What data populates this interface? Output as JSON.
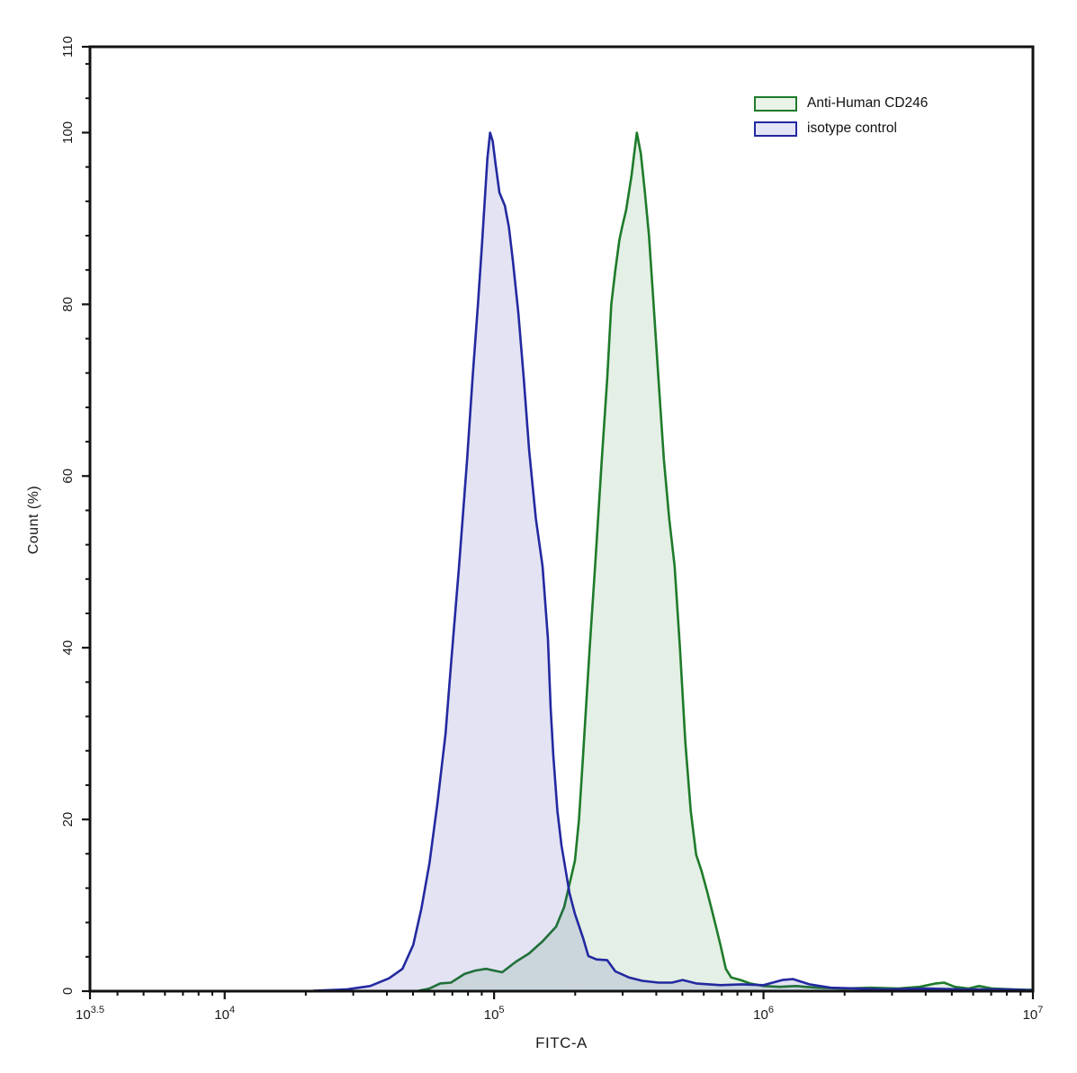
{
  "figure": {
    "xlabel": "FITC-A",
    "ylabel": "Count (%)"
  },
  "legend": {
    "items": [
      {
        "label": "Anti-Human CD246",
        "line_color": "#1e7b2a",
        "fill_color": "#e9f3e8"
      },
      {
        "label": "isotype control",
        "line_color": "#2329a0",
        "fill_color": "#e4e5f6"
      }
    ]
  },
  "chart_data": {
    "type": "area",
    "title": "",
    "xlabel": "FITC-A",
    "ylabel": "Count (%)",
    "x_scale": "log10",
    "xlim_log10": [
      3.5,
      7
    ],
    "ylim": [
      0,
      110
    ],
    "grid": false,
    "legend_position": "top-right-inside",
    "x_major_ticks_log10": [
      3.5,
      4,
      5,
      6,
      7
    ],
    "x_major_tick_labels": [
      "10^3.5",
      "10^4",
      "10^5",
      "10^6",
      "10^7"
    ],
    "y_major_ticks": [
      0,
      20,
      40,
      60,
      80,
      100,
      110
    ],
    "y_minor_step": 4,
    "axis_color": "#111111",
    "series": [
      {
        "name": "Anti-Human CD246",
        "line_color": "#1e7b2a",
        "fill_opacity": 0.12,
        "peak": {
          "x_approx": 340000,
          "y_pct": 100
        },
        "points_log10x_pct": [
          [
            4.72,
            0.05
          ],
          [
            4.76,
            0.3
          ],
          [
            4.8,
            0.9
          ],
          [
            4.84,
            1.0
          ],
          [
            4.89,
            2.0
          ],
          [
            4.93,
            2.4
          ],
          [
            4.97,
            2.6
          ],
          [
            5.0,
            2.4
          ],
          [
            5.03,
            2.2
          ],
          [
            5.08,
            3.4
          ],
          [
            5.13,
            4.4
          ],
          [
            5.18,
            5.8
          ],
          [
            5.23,
            7.5
          ],
          [
            5.26,
            9.8
          ],
          [
            5.28,
            12.5
          ],
          [
            5.3,
            15.2
          ],
          [
            5.315,
            20
          ],
          [
            5.33,
            27.4
          ],
          [
            5.355,
            40
          ],
          [
            5.375,
            49.5
          ],
          [
            5.4,
            62
          ],
          [
            5.42,
            71.4
          ],
          [
            5.435,
            80
          ],
          [
            5.45,
            84
          ],
          [
            5.465,
            87.5
          ],
          [
            5.475,
            89
          ],
          [
            5.49,
            91
          ],
          [
            5.51,
            95
          ],
          [
            5.52,
            97.5
          ],
          [
            5.53,
            100
          ],
          [
            5.545,
            97.5
          ],
          [
            5.56,
            93
          ],
          [
            5.575,
            88
          ],
          [
            5.59,
            81
          ],
          [
            5.61,
            71.4
          ],
          [
            5.63,
            62
          ],
          [
            5.65,
            55
          ],
          [
            5.67,
            49.5
          ],
          [
            5.69,
            40
          ],
          [
            5.71,
            29
          ],
          [
            5.73,
            21
          ],
          [
            5.75,
            15.9
          ],
          [
            5.77,
            14
          ],
          [
            5.79,
            11.7
          ],
          [
            5.815,
            8.6
          ],
          [
            5.84,
            5.4
          ],
          [
            5.86,
            2.6
          ],
          [
            5.88,
            1.6
          ],
          [
            5.915,
            1.3
          ],
          [
            5.95,
            0.9
          ],
          [
            6.0,
            0.6
          ],
          [
            6.06,
            0.5
          ],
          [
            6.12,
            0.6
          ],
          [
            6.2,
            0.4
          ],
          [
            6.3,
            0.3
          ],
          [
            6.4,
            0.4
          ],
          [
            6.5,
            0.3
          ],
          [
            6.58,
            0.5
          ],
          [
            6.64,
            0.9
          ],
          [
            6.67,
            1.0
          ],
          [
            6.71,
            0.5
          ],
          [
            6.76,
            0.3
          ],
          [
            6.8,
            0.6
          ],
          [
            6.85,
            0.3
          ],
          [
            6.93,
            0.2
          ],
          [
            7.0,
            0.15
          ]
        ]
      },
      {
        "name": "isotype control",
        "line_color": "#2329a0",
        "fill_opacity": 0.13,
        "peak": {
          "x_approx": 97000,
          "y_pct": 100
        },
        "points_log10x_pct": [
          [
            4.33,
            0.05
          ],
          [
            4.45,
            0.2
          ],
          [
            4.54,
            0.6
          ],
          [
            4.61,
            1.5
          ],
          [
            4.66,
            2.6
          ],
          [
            4.7,
            5.4
          ],
          [
            4.73,
            9.6
          ],
          [
            4.76,
            14.9
          ],
          [
            4.79,
            22
          ],
          [
            4.82,
            30
          ],
          [
            4.84,
            38
          ],
          [
            4.87,
            49.5
          ],
          [
            4.9,
            62
          ],
          [
            4.92,
            71.4
          ],
          [
            4.94,
            80
          ],
          [
            4.955,
            87
          ],
          [
            4.965,
            92
          ],
          [
            4.975,
            97
          ],
          [
            4.985,
            100
          ],
          [
            4.995,
            99
          ],
          [
            5.005,
            96.5
          ],
          [
            5.02,
            93
          ],
          [
            5.04,
            91.5
          ],
          [
            5.055,
            89
          ],
          [
            5.07,
            85
          ],
          [
            5.09,
            79
          ],
          [
            5.11,
            71.4
          ],
          [
            5.13,
            63
          ],
          [
            5.155,
            55
          ],
          [
            5.18,
            49.5
          ],
          [
            5.2,
            41
          ],
          [
            5.21,
            33
          ],
          [
            5.22,
            27.4
          ],
          [
            5.235,
            21
          ],
          [
            5.25,
            17
          ],
          [
            5.28,
            11.4
          ],
          [
            5.3,
            9
          ],
          [
            5.33,
            6.2
          ],
          [
            5.35,
            4.1
          ],
          [
            5.38,
            3.7
          ],
          [
            5.42,
            3.6
          ],
          [
            5.45,
            2.3
          ],
          [
            5.5,
            1.6
          ],
          [
            5.55,
            1.2
          ],
          [
            5.61,
            1.0
          ],
          [
            5.66,
            1.0
          ],
          [
            5.7,
            1.3
          ],
          [
            5.75,
            0.9
          ],
          [
            5.84,
            0.7
          ],
          [
            5.92,
            0.8
          ],
          [
            6.0,
            0.7
          ],
          [
            6.07,
            1.3
          ],
          [
            6.11,
            1.4
          ],
          [
            6.17,
            0.8
          ],
          [
            6.25,
            0.4
          ],
          [
            6.35,
            0.3
          ],
          [
            6.45,
            0.2
          ],
          [
            6.6,
            0.3
          ],
          [
            6.75,
            0.2
          ],
          [
            6.9,
            0.2
          ],
          [
            7.0,
            0.1
          ]
        ]
      }
    ]
  }
}
